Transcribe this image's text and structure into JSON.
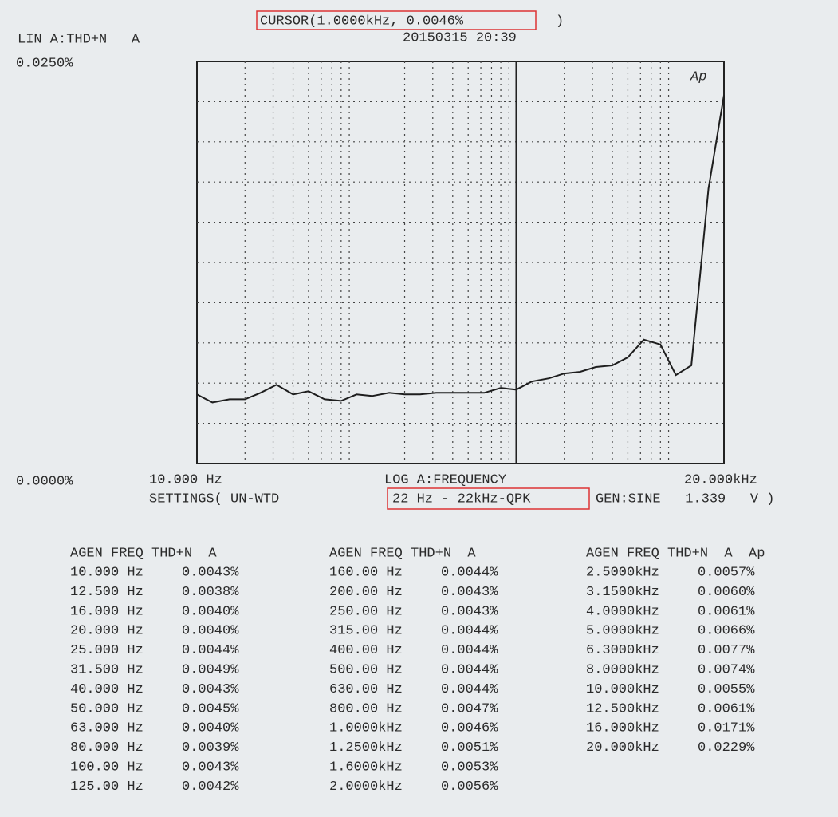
{
  "header": {
    "cursor_label": "CURSOR(1.0000kHz, 0.0046%",
    "cursor_close": ")",
    "timestamp": "20150315 20:39",
    "settings": "SETTINGS( UN-WTD",
    "filter": "22 Hz - 22kHz-QPK",
    "generator": "GEN:SINE   1.339   V )"
  },
  "chart_data": {
    "type": "line",
    "y_label": "LIN A:THD+N   A",
    "x_label": "LOG A:FREQUENCY",
    "logo": "Ap",
    "x_scale": "log",
    "grid": true,
    "color": "#1e1e1e",
    "xlim": [
      10,
      20000
    ],
    "ylim": [
      0,
      0.025
    ],
    "xticks": [
      {
        "value": 10,
        "label": "10.000 Hz"
      },
      {
        "value": 20000,
        "label": "20.000kHz"
      }
    ],
    "yticks": [
      {
        "value": 0,
        "label": "0.0000%"
      },
      {
        "value": 0.025,
        "label": "0.0250%"
      }
    ],
    "cursor_x": 1000,
    "x": [
      10,
      12.5,
      16,
      20,
      25,
      31.5,
      40,
      50,
      63,
      80,
      100,
      125,
      160,
      200,
      250,
      315,
      400,
      500,
      630,
      800,
      1000,
      1250,
      1600,
      2000,
      2500,
      3150,
      4000,
      5000,
      6300,
      8000,
      10000,
      12500,
      16000,
      20000
    ],
    "values": [
      0.0043,
      0.0038,
      0.004,
      0.004,
      0.0044,
      0.0049,
      0.0043,
      0.0045,
      0.004,
      0.0039,
      0.0043,
      0.0042,
      0.0044,
      0.0043,
      0.0043,
      0.0044,
      0.0044,
      0.0044,
      0.0044,
      0.0047,
      0.0046,
      0.0051,
      0.0053,
      0.0056,
      0.0057,
      0.006,
      0.0061,
      0.0066,
      0.0077,
      0.0074,
      0.0055,
      0.0061,
      0.0171,
      0.0229
    ]
  },
  "table": {
    "columns": [
      {
        "header": "AGEN FREQ THD+N  A",
        "rows": [
          [
            "10.000 Hz",
            "0.0043%"
          ],
          [
            "12.500 Hz",
            "0.0038%"
          ],
          [
            "16.000 Hz",
            "0.0040%"
          ],
          [
            "20.000 Hz",
            "0.0040%"
          ],
          [
            "25.000 Hz",
            "0.0044%"
          ],
          [
            "31.500 Hz",
            "0.0049%"
          ],
          [
            "40.000 Hz",
            "0.0043%"
          ],
          [
            "50.000 Hz",
            "0.0045%"
          ],
          [
            "63.000 Hz",
            "0.0040%"
          ],
          [
            "80.000 Hz",
            "0.0039%"
          ],
          [
            "100.00 Hz",
            "0.0043%"
          ],
          [
            "125.00 Hz",
            "0.0042%"
          ]
        ]
      },
      {
        "header": "AGEN FREQ THD+N  A",
        "rows": [
          [
            "160.00 Hz",
            "0.0044%"
          ],
          [
            "200.00 Hz",
            "0.0043%"
          ],
          [
            "250.00 Hz",
            "0.0043%"
          ],
          [
            "315.00 Hz",
            "0.0044%"
          ],
          [
            "400.00 Hz",
            "0.0044%"
          ],
          [
            "500.00 Hz",
            "0.0044%"
          ],
          [
            "630.00 Hz",
            "0.0044%"
          ],
          [
            "800.00 Hz",
            "0.0047%"
          ],
          [
            "1.0000kHz",
            "0.0046%"
          ],
          [
            "1.2500kHz",
            "0.0051%"
          ],
          [
            "1.6000kHz",
            "0.0053%"
          ],
          [
            "2.0000kHz",
            "0.0056%"
          ]
        ]
      },
      {
        "header": "AGEN FREQ THD+N  A  Ap",
        "rows": [
          [
            "2.5000kHz",
            "0.0057%"
          ],
          [
            "3.1500kHz",
            "0.0060%"
          ],
          [
            "4.0000kHz",
            "0.0061%"
          ],
          [
            "5.0000kHz",
            "0.0066%"
          ],
          [
            "6.3000kHz",
            "0.0077%"
          ],
          [
            "8.0000kHz",
            "0.0074%"
          ],
          [
            "10.000kHz",
            "0.0055%"
          ],
          [
            "12.500kHz",
            "0.0061%"
          ],
          [
            "16.000kHz",
            "0.0171%"
          ],
          [
            "20.000kHz",
            "0.0229%"
          ]
        ]
      }
    ]
  }
}
